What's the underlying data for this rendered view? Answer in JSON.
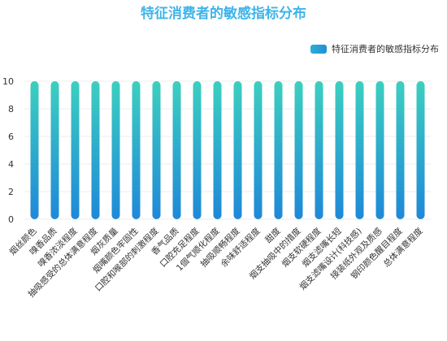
{
  "chart_data": {
    "type": "bar",
    "title": "特征消费者的敏感指标分布",
    "xlabel": "",
    "ylabel": "",
    "ylim": [
      0,
      10
    ],
    "yticks": [
      0,
      2,
      4,
      6,
      8,
      10
    ],
    "grid": true,
    "legend_position": "top-right",
    "categories": [
      "烟丝颜色",
      "嗅香品质",
      "嗅香浓淡程度",
      "抽吸感受的总体满意程度",
      "烟灰质量",
      "烟嘴颜色牢固性",
      "口腔和喉部的刺激程度",
      "香气品质",
      "口腔充足程度",
      "1個气顺化程度",
      "抽吸顺畅程度",
      "余味舒适程度",
      "甜度",
      "烟支抽吸中的措度",
      "烟支软硬程度",
      "烟支滤嘴长短",
      "烟支滤嘴设计(科技感)",
      "接装纸外观及质感",
      "钢印颜色醒目程度",
      "总体满意程度"
    ],
    "series": [
      {
        "name": "特征消费者的敏感指标分布",
        "values": [
          10,
          10,
          10,
          10,
          10,
          10,
          10,
          10,
          10,
          10,
          10,
          10,
          10,
          10,
          10,
          10,
          10,
          10,
          10,
          10
        ]
      }
    ],
    "colors": {
      "bar_top": "#3ccfc0",
      "bar_bottom": "#1f88d8",
      "title": "#3eb4ea"
    }
  }
}
